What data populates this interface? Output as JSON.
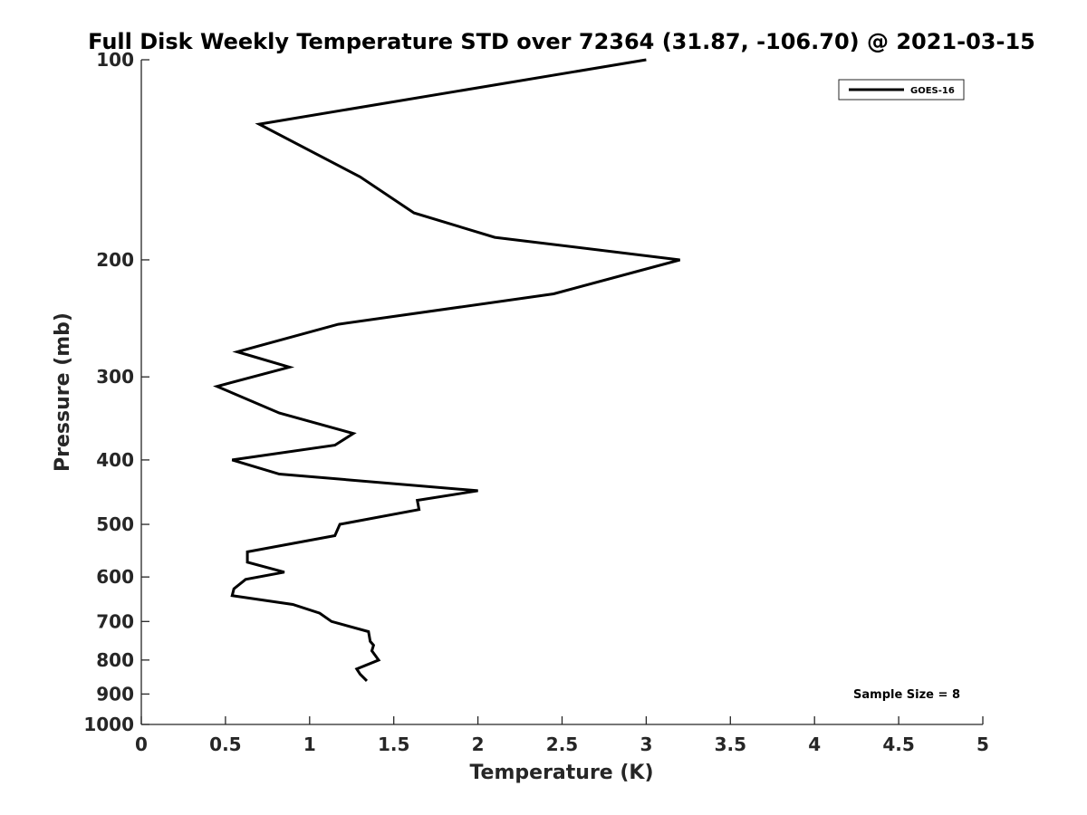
{
  "chart_data": {
    "type": "line",
    "title": "Full Disk Weekly Temperature STD over 72364 (31.87, -106.70) @ 2021-03-15",
    "xlabel": "Temperature (K)",
    "ylabel": "Pressure (mb)",
    "xlim": [
      0,
      5
    ],
    "ylim": [
      100,
      1000
    ],
    "y_scale": "log",
    "y_reversed": true,
    "x_ticks": [
      "0",
      "0.5",
      "1",
      "1.5",
      "2",
      "2.5",
      "3",
      "3.5",
      "4",
      "4.5",
      "5"
    ],
    "y_ticks": [
      "100",
      "200",
      "300",
      "400",
      "500",
      "600",
      "700",
      "800",
      "900",
      "1000"
    ],
    "grid": false,
    "legend_position": "top-right",
    "annotation": "Sample Size = 8",
    "series": [
      {
        "name": "GOES-16",
        "color": "#000000",
        "points": [
          {
            "x": 3.0,
            "p": 100
          },
          {
            "x": 0.7,
            "p": 125
          },
          {
            "x": 1.3,
            "p": 150
          },
          {
            "x": 1.62,
            "p": 170
          },
          {
            "x": 2.1,
            "p": 185
          },
          {
            "x": 3.2,
            "p": 200
          },
          {
            "x": 2.45,
            "p": 225
          },
          {
            "x": 1.17,
            "p": 250
          },
          {
            "x": 0.57,
            "p": 275
          },
          {
            "x": 0.88,
            "p": 290
          },
          {
            "x": 0.45,
            "p": 310
          },
          {
            "x": 0.82,
            "p": 340
          },
          {
            "x": 1.26,
            "p": 365
          },
          {
            "x": 1.15,
            "p": 380
          },
          {
            "x": 0.54,
            "p": 400
          },
          {
            "x": 0.82,
            "p": 420
          },
          {
            "x": 2.0,
            "p": 445
          },
          {
            "x": 1.64,
            "p": 460
          },
          {
            "x": 1.65,
            "p": 475
          },
          {
            "x": 1.18,
            "p": 500
          },
          {
            "x": 1.15,
            "p": 520
          },
          {
            "x": 0.63,
            "p": 550
          },
          {
            "x": 0.63,
            "p": 570
          },
          {
            "x": 0.85,
            "p": 590
          },
          {
            "x": 0.62,
            "p": 605
          },
          {
            "x": 0.55,
            "p": 625
          },
          {
            "x": 0.54,
            "p": 640
          },
          {
            "x": 0.9,
            "p": 660
          },
          {
            "x": 1.06,
            "p": 680
          },
          {
            "x": 1.13,
            "p": 700
          },
          {
            "x": 1.35,
            "p": 725
          },
          {
            "x": 1.36,
            "p": 750
          },
          {
            "x": 1.38,
            "p": 760
          },
          {
            "x": 1.37,
            "p": 775
          },
          {
            "x": 1.41,
            "p": 800
          },
          {
            "x": 1.28,
            "p": 825
          },
          {
            "x": 1.3,
            "p": 840
          },
          {
            "x": 1.34,
            "p": 860
          }
        ]
      }
    ]
  }
}
